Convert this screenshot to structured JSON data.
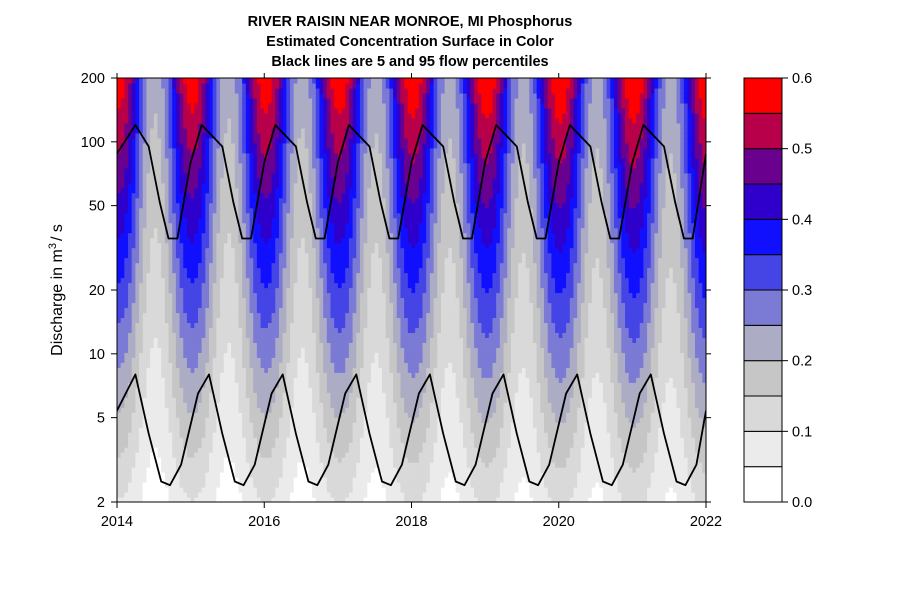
{
  "chart_data": {
    "type": "heatmap",
    "title_lines": [
      "RIVER RAISIN NEAR MONROE, MI    Phosphorus",
      "Estimated Concentration Surface in Color",
      "Black lines are 5 and 95 flow percentiles"
    ],
    "xlabel": "",
    "ylabel": "Discharge in m",
    "ylabel_superscript": "3",
    "ylabel_suffix": "/ s",
    "xlim": [
      2014,
      2022
    ],
    "ylim": [
      2,
      200
    ],
    "y_scale": "log",
    "x_ticks": [
      2014,
      2016,
      2018,
      2020,
      2022
    ],
    "x_tick_labels": [
      "2014",
      "2016",
      "2018",
      "2020",
      "2022"
    ],
    "y_ticks": [
      2,
      5,
      10,
      20,
      50,
      100,
      200
    ],
    "y_tick_labels": [
      "2",
      "5",
      "10",
      "20",
      "50",
      "100",
      "200"
    ],
    "legend": {
      "placement": "right",
      "levels": [
        0.0,
        0.05,
        0.1,
        0.15,
        0.2,
        0.25,
        0.3,
        0.35,
        0.4,
        0.45,
        0.5,
        0.55,
        0.6
      ],
      "colors": [
        "#ffffff",
        "#ebebeb",
        "#d9d9d9",
        "#c6c6c6",
        "#acacc4",
        "#7b7bd5",
        "#4545e6",
        "#1010ff",
        "#2f00cc",
        "#6a008e",
        "#b8004a",
        "#ff0000"
      ],
      "tick_values": [
        0.0,
        0.1,
        0.2,
        0.3,
        0.4,
        0.5,
        0.6
      ],
      "tick_labels": [
        "0.0",
        "0.1",
        "0.2",
        "0.3",
        "0.4",
        "0.5",
        "0.6"
      ]
    },
    "series": [
      {
        "x": [
          2014.0,
          2014.25,
          2014.43,
          2014.58,
          2014.7,
          2014.82,
          2015.0,
          2015.15,
          2015.43,
          2015.58,
          2015.7,
          2015.82,
          2016.0,
          2016.15,
          2016.43,
          2016.58,
          2016.7,
          2016.82,
          2017.0,
          2017.15,
          2017.43,
          2017.58,
          2017.7,
          2017.82,
          2018.0,
          2018.15,
          2018.43,
          2018.58,
          2018.7,
          2018.82,
          2019.0,
          2019.15,
          2019.43,
          2019.58,
          2019.7,
          2019.82,
          2020.0,
          2020.15,
          2020.43,
          2020.58,
          2020.7,
          2020.82,
          2021.0,
          2021.15,
          2021.43,
          2021.58,
          2021.7,
          2021.82,
          2022.0
        ],
        "y": [
          88,
          120,
          95,
          52,
          35,
          35,
          80,
          120,
          95,
          52,
          35,
          35,
          80,
          120,
          95,
          52,
          35,
          35,
          80,
          120,
          95,
          52,
          35,
          35,
          80,
          120,
          95,
          52,
          35,
          35,
          80,
          120,
          95,
          52,
          35,
          35,
          80,
          120,
          95,
          52,
          35,
          35,
          80,
          120,
          95,
          52,
          35,
          35,
          88
        ]
      },
      {
        "x": [
          2014.0,
          2014.25,
          2014.43,
          2014.6,
          2014.72,
          2014.87,
          2015.1,
          2015.25,
          2015.43,
          2015.6,
          2015.72,
          2015.87,
          2016.1,
          2016.25,
          2016.43,
          2016.6,
          2016.72,
          2016.87,
          2017.1,
          2017.25,
          2017.43,
          2017.6,
          2017.72,
          2017.87,
          2018.1,
          2018.25,
          2018.43,
          2018.6,
          2018.72,
          2018.87,
          2019.1,
          2019.25,
          2019.43,
          2019.6,
          2019.72,
          2019.87,
          2020.1,
          2020.25,
          2020.43,
          2020.6,
          2020.72,
          2020.87,
          2021.1,
          2021.25,
          2021.43,
          2021.6,
          2021.72,
          2021.87,
          2022.0
        ],
        "y": [
          5.4,
          8.0,
          4.2,
          2.5,
          2.4,
          3.0,
          6.5,
          8.0,
          4.2,
          2.5,
          2.4,
          3.0,
          6.5,
          8.0,
          4.2,
          2.5,
          2.4,
          3.0,
          6.5,
          8.0,
          4.2,
          2.5,
          2.4,
          3.0,
          6.5,
          8.0,
          4.2,
          2.5,
          2.4,
          3.0,
          6.5,
          8.0,
          4.2,
          2.5,
          2.4,
          3.0,
          6.5,
          8.0,
          4.2,
          2.5,
          2.4,
          3.0,
          6.5,
          8.0,
          4.2,
          2.5,
          2.4,
          3.0,
          5.4
        ]
      }
    ]
  }
}
